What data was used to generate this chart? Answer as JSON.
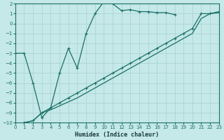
{
  "xlabel": "Humidex (Indice chaleur)",
  "background_color": "#c5e8e8",
  "grid_color": "#a8d0d0",
  "line_color": "#1a7068",
  "xlim": [
    0,
    23
  ],
  "ylim": [
    -10,
    2
  ],
  "xticks": [
    0,
    1,
    2,
    3,
    4,
    5,
    6,
    7,
    8,
    9,
    10,
    11,
    12,
    13,
    14,
    15,
    16,
    17,
    18,
    19,
    20,
    21,
    22,
    23
  ],
  "yticks": [
    2,
    1,
    0,
    -1,
    -2,
    -3,
    -4,
    -5,
    -6,
    -7,
    -8,
    -9,
    -10
  ],
  "curve1_x": [
    0,
    1,
    2,
    3,
    4,
    5,
    6,
    7,
    8,
    9,
    10,
    11,
    12,
    13,
    14,
    15,
    16,
    17,
    18
  ],
  "curve1_y": [
    -3,
    -3,
    -6,
    -9.5,
    -8.5,
    -5.0,
    -2.5,
    -4.5,
    -1.0,
    1.0,
    2.2,
    2.0,
    1.3,
    1.4,
    1.2,
    1.2,
    1.1,
    1.1,
    0.9
  ],
  "curve2_x": [
    1,
    2,
    3,
    4,
    5,
    6,
    7,
    8,
    9,
    10,
    11,
    12,
    13,
    14,
    15,
    16,
    17,
    18,
    19,
    20,
    21,
    22,
    23
  ],
  "curve2_y": [
    -10,
    -9.8,
    -9,
    -8.5,
    -8.0,
    -7.5,
    -7.0,
    -6.5,
    -6.0,
    -5.5,
    -5.0,
    -4.5,
    -4.0,
    -3.5,
    -3.0,
    -2.5,
    -2.0,
    -1.5,
    -1.0,
    -0.5,
    1.0,
    1.0,
    1.1
  ],
  "curve3_x": [
    1,
    2,
    3,
    4,
    5,
    6,
    7,
    8,
    9,
    10,
    11,
    12,
    13,
    14,
    15,
    16,
    17,
    18,
    19,
    20,
    21,
    22,
    23
  ],
  "curve3_y": [
    -10,
    -9.8,
    -9,
    -8.7,
    -8.3,
    -7.9,
    -7.5,
    -7.0,
    -6.5,
    -6.0,
    -5.5,
    -5.0,
    -4.5,
    -4.0,
    -3.5,
    -3.0,
    -2.5,
    -2.0,
    -1.5,
    -1.0,
    0.5,
    1.0,
    1.2
  ],
  "xlabel_fontsize": 6,
  "tick_fontsize": 5
}
